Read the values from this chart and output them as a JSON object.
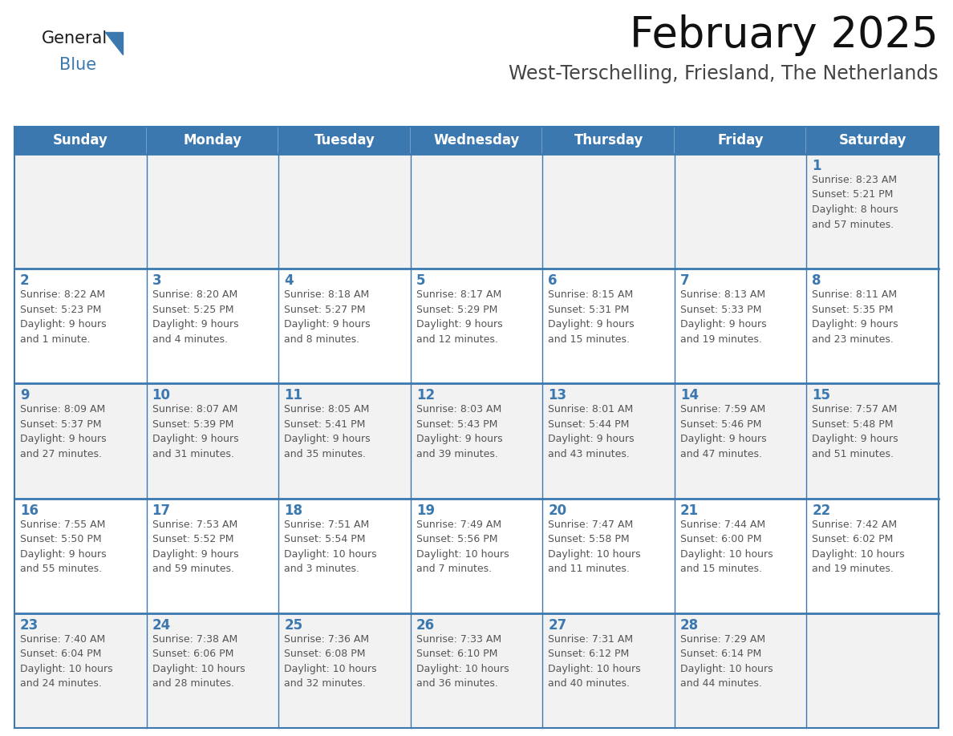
{
  "title": "February 2025",
  "subtitle": "West-Terschelling, Friesland, The Netherlands",
  "header_color": "#3B78B0",
  "header_text_color": "#FFFFFF",
  "cell_bg_color": "#FFFFFF",
  "cell_alt_bg_color": "#F2F2F2",
  "grid_line_color": "#3B78B0",
  "day_number_color": "#3B78B0",
  "cell_text_color": "#555555",
  "days_of_week": [
    "Sunday",
    "Monday",
    "Tuesday",
    "Wednesday",
    "Thursday",
    "Friday",
    "Saturday"
  ],
  "calendar_data": [
    [
      {
        "day": "",
        "info": ""
      },
      {
        "day": "",
        "info": ""
      },
      {
        "day": "",
        "info": ""
      },
      {
        "day": "",
        "info": ""
      },
      {
        "day": "",
        "info": ""
      },
      {
        "day": "",
        "info": ""
      },
      {
        "day": "1",
        "info": "Sunrise: 8:23 AM\nSunset: 5:21 PM\nDaylight: 8 hours\nand 57 minutes."
      }
    ],
    [
      {
        "day": "2",
        "info": "Sunrise: 8:22 AM\nSunset: 5:23 PM\nDaylight: 9 hours\nand 1 minute."
      },
      {
        "day": "3",
        "info": "Sunrise: 8:20 AM\nSunset: 5:25 PM\nDaylight: 9 hours\nand 4 minutes."
      },
      {
        "day": "4",
        "info": "Sunrise: 8:18 AM\nSunset: 5:27 PM\nDaylight: 9 hours\nand 8 minutes."
      },
      {
        "day": "5",
        "info": "Sunrise: 8:17 AM\nSunset: 5:29 PM\nDaylight: 9 hours\nand 12 minutes."
      },
      {
        "day": "6",
        "info": "Sunrise: 8:15 AM\nSunset: 5:31 PM\nDaylight: 9 hours\nand 15 minutes."
      },
      {
        "day": "7",
        "info": "Sunrise: 8:13 AM\nSunset: 5:33 PM\nDaylight: 9 hours\nand 19 minutes."
      },
      {
        "day": "8",
        "info": "Sunrise: 8:11 AM\nSunset: 5:35 PM\nDaylight: 9 hours\nand 23 minutes."
      }
    ],
    [
      {
        "day": "9",
        "info": "Sunrise: 8:09 AM\nSunset: 5:37 PM\nDaylight: 9 hours\nand 27 minutes."
      },
      {
        "day": "10",
        "info": "Sunrise: 8:07 AM\nSunset: 5:39 PM\nDaylight: 9 hours\nand 31 minutes."
      },
      {
        "day": "11",
        "info": "Sunrise: 8:05 AM\nSunset: 5:41 PM\nDaylight: 9 hours\nand 35 minutes."
      },
      {
        "day": "12",
        "info": "Sunrise: 8:03 AM\nSunset: 5:43 PM\nDaylight: 9 hours\nand 39 minutes."
      },
      {
        "day": "13",
        "info": "Sunrise: 8:01 AM\nSunset: 5:44 PM\nDaylight: 9 hours\nand 43 minutes."
      },
      {
        "day": "14",
        "info": "Sunrise: 7:59 AM\nSunset: 5:46 PM\nDaylight: 9 hours\nand 47 minutes."
      },
      {
        "day": "15",
        "info": "Sunrise: 7:57 AM\nSunset: 5:48 PM\nDaylight: 9 hours\nand 51 minutes."
      }
    ],
    [
      {
        "day": "16",
        "info": "Sunrise: 7:55 AM\nSunset: 5:50 PM\nDaylight: 9 hours\nand 55 minutes."
      },
      {
        "day": "17",
        "info": "Sunrise: 7:53 AM\nSunset: 5:52 PM\nDaylight: 9 hours\nand 59 minutes."
      },
      {
        "day": "18",
        "info": "Sunrise: 7:51 AM\nSunset: 5:54 PM\nDaylight: 10 hours\nand 3 minutes."
      },
      {
        "day": "19",
        "info": "Sunrise: 7:49 AM\nSunset: 5:56 PM\nDaylight: 10 hours\nand 7 minutes."
      },
      {
        "day": "20",
        "info": "Sunrise: 7:47 AM\nSunset: 5:58 PM\nDaylight: 10 hours\nand 11 minutes."
      },
      {
        "day": "21",
        "info": "Sunrise: 7:44 AM\nSunset: 6:00 PM\nDaylight: 10 hours\nand 15 minutes."
      },
      {
        "day": "22",
        "info": "Sunrise: 7:42 AM\nSunset: 6:02 PM\nDaylight: 10 hours\nand 19 minutes."
      }
    ],
    [
      {
        "day": "23",
        "info": "Sunrise: 7:40 AM\nSunset: 6:04 PM\nDaylight: 10 hours\nand 24 minutes."
      },
      {
        "day": "24",
        "info": "Sunrise: 7:38 AM\nSunset: 6:06 PM\nDaylight: 10 hours\nand 28 minutes."
      },
      {
        "day": "25",
        "info": "Sunrise: 7:36 AM\nSunset: 6:08 PM\nDaylight: 10 hours\nand 32 minutes."
      },
      {
        "day": "26",
        "info": "Sunrise: 7:33 AM\nSunset: 6:10 PM\nDaylight: 10 hours\nand 36 minutes."
      },
      {
        "day": "27",
        "info": "Sunrise: 7:31 AM\nSunset: 6:12 PM\nDaylight: 10 hours\nand 40 minutes."
      },
      {
        "day": "28",
        "info": "Sunrise: 7:29 AM\nSunset: 6:14 PM\nDaylight: 10 hours\nand 44 minutes."
      },
      {
        "day": "",
        "info": ""
      }
    ]
  ],
  "logo_general_color": "#1a1a1a",
  "logo_blue_color": "#3B78B0",
  "title_fontsize": 38,
  "subtitle_fontsize": 17,
  "header_fontsize": 12,
  "day_number_fontsize": 12,
  "cell_info_fontsize": 9
}
